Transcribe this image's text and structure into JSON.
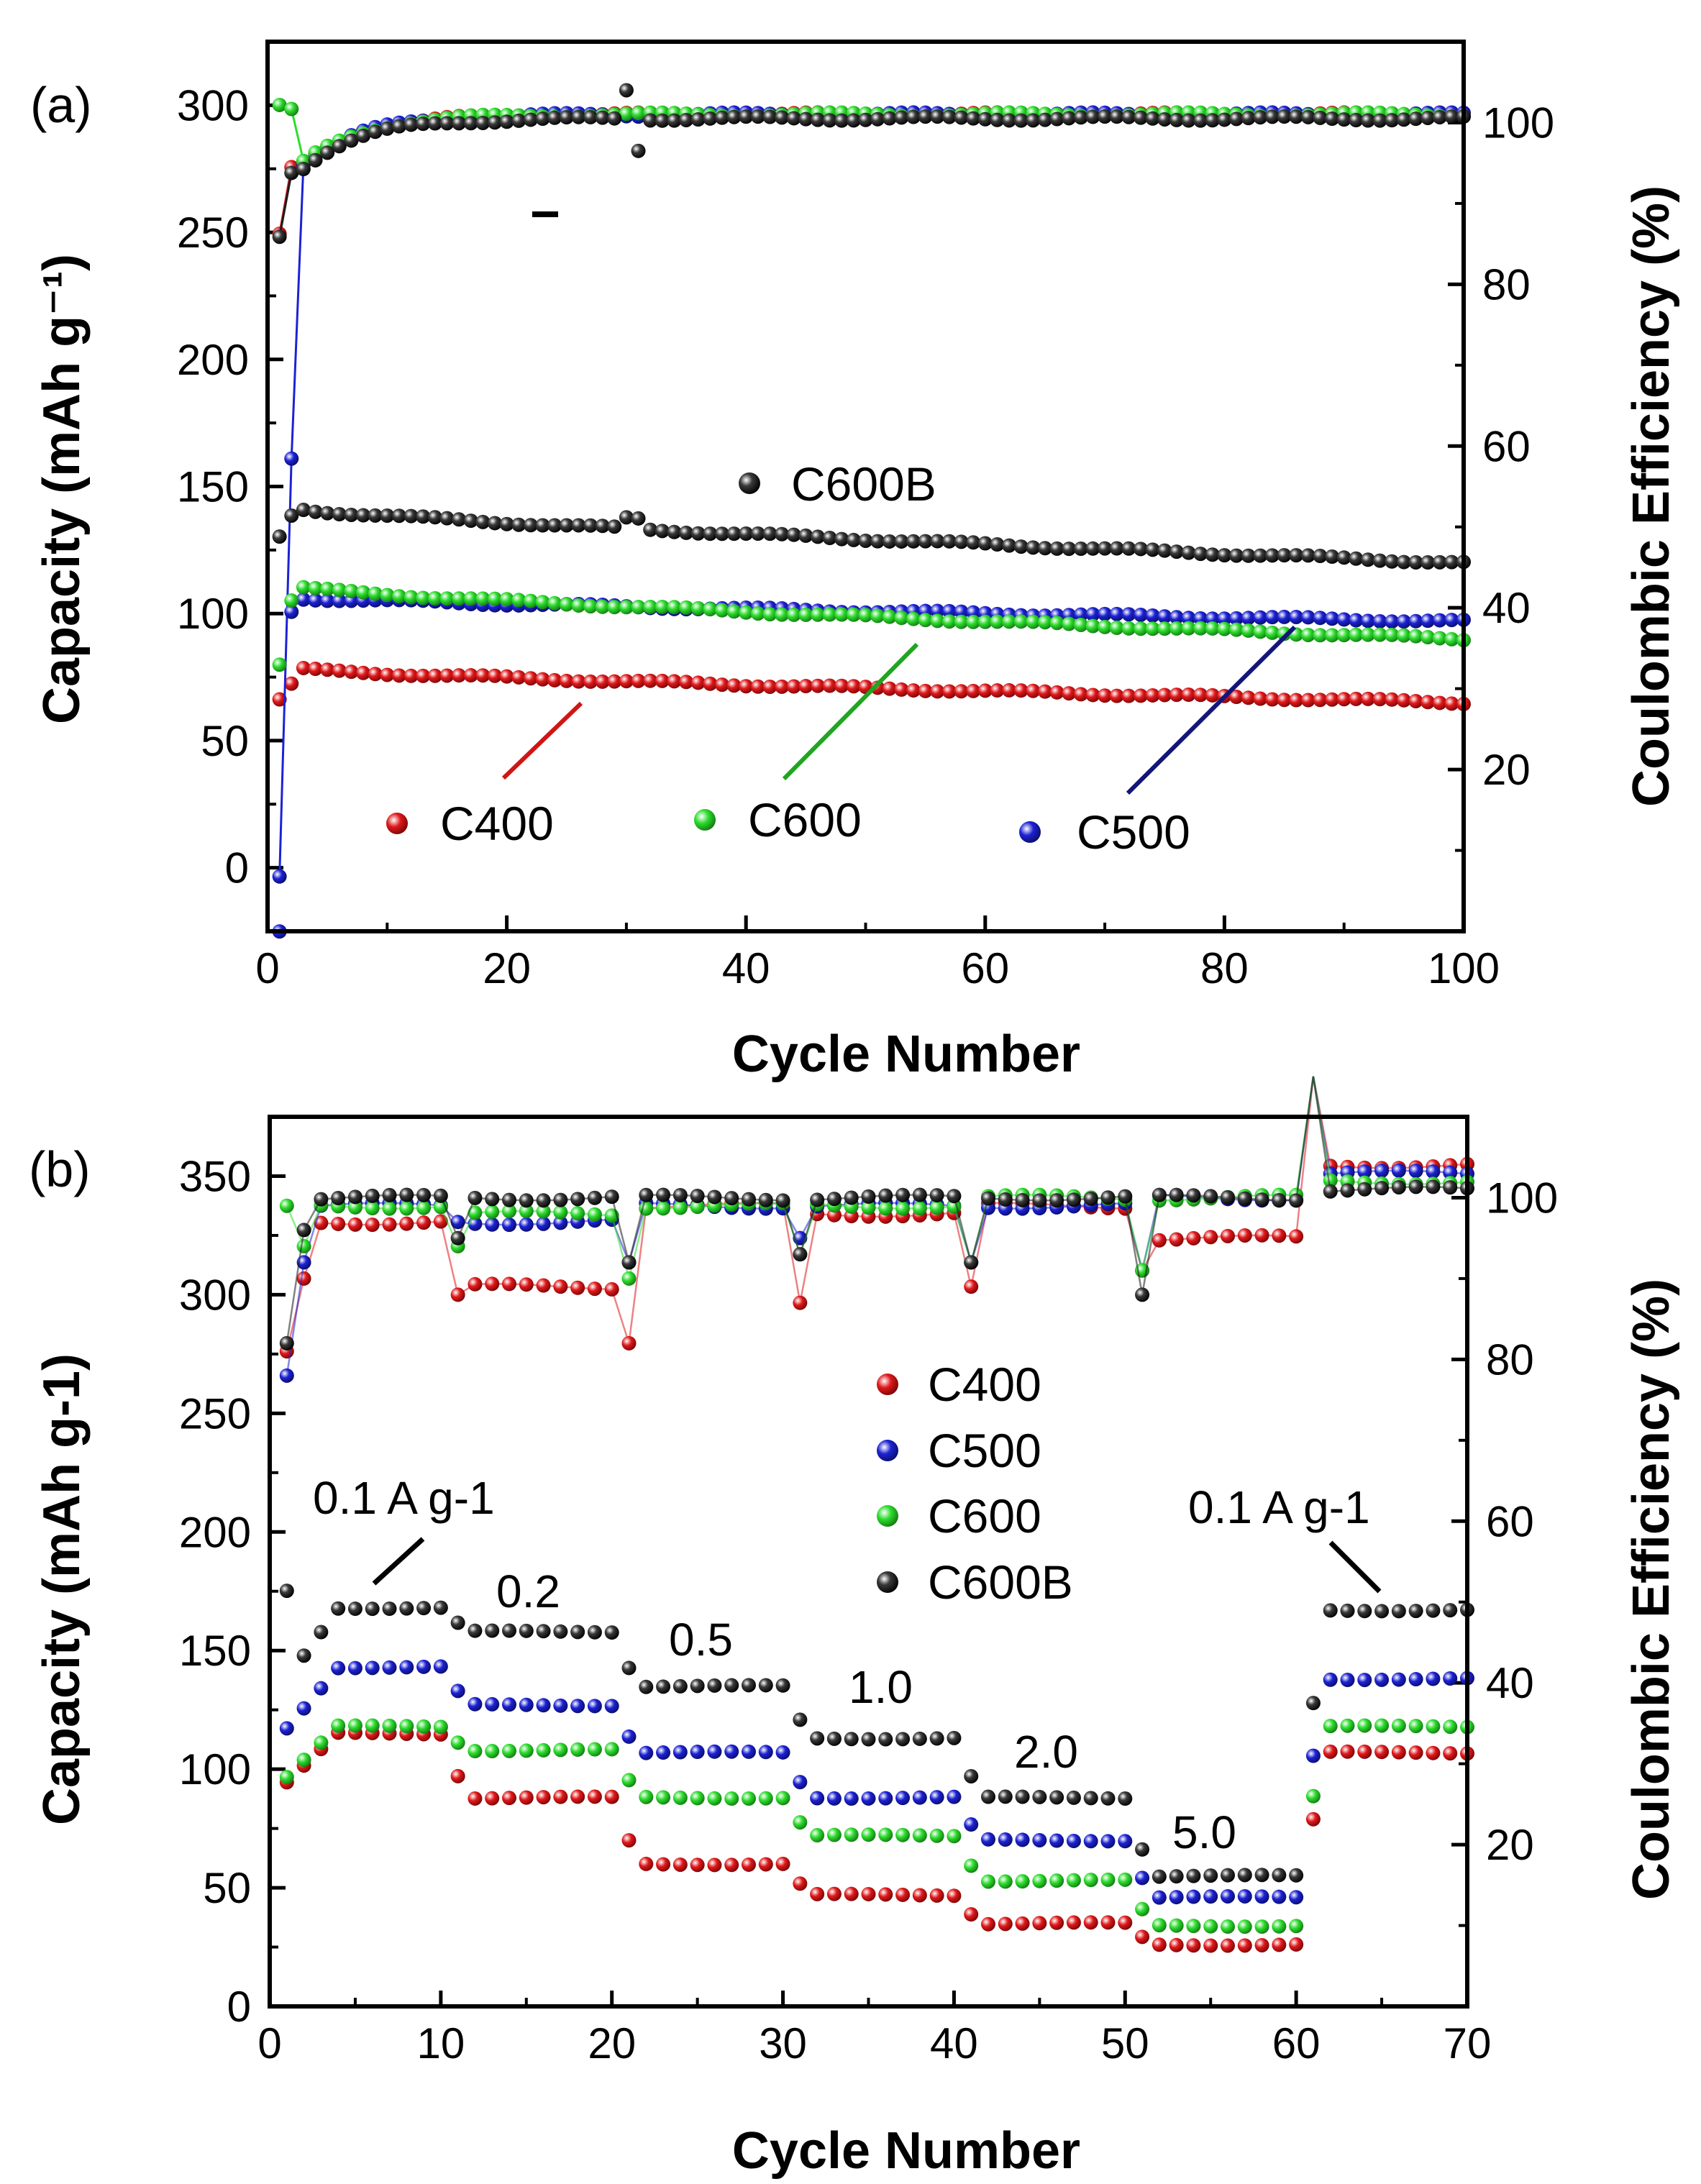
{
  "chart_data": [
    {
      "panel": "(a)",
      "type": "scatter",
      "xlabel": "Cycle Number",
      "ylabel": "Capacity (mAh g⁻¹)",
      "y2label": "Coulombic Efficiency (%)",
      "xlim": [
        0,
        100
      ],
      "ylim": [
        -25,
        325
      ],
      "y2lim": [
        0,
        110
      ],
      "xticks": [
        "0",
        "20",
        "40",
        "60",
        "80",
        "100"
      ],
      "yticks": [
        "0",
        "50",
        "100",
        "150",
        "200",
        "250",
        "300"
      ],
      "y2ticks": [
        "20",
        "40",
        "60",
        "80",
        "100"
      ],
      "legend": {
        "labels": [
          "C600B",
          "C400",
          "C600",
          "C500"
        ],
        "colors": [
          "#1a1a1a",
          "#e0191b",
          "#2ddc2d",
          "#1c22d4"
        ]
      },
      "series": [
        {
          "name": "C400",
          "color": "#e0191b",
          "capacity": {
            "start": 66,
            "peak": 78,
            "end": 65,
            "first": 66
          },
          "ce": {
            "first": 86,
            "end": 101
          }
        },
        {
          "name": "C500",
          "color": "#1c22d4",
          "capacity": {
            "start": 96,
            "peak": 106,
            "end": 97,
            "first": -25
          },
          "ce": {
            "first": 7,
            "end": 101
          }
        },
        {
          "name": "C600",
          "color": "#2ddc2d",
          "capacity": {
            "start": 100,
            "peak": 110,
            "end": 90,
            "first": 80
          },
          "ce": {
            "first": 102,
            "end": 101
          }
        },
        {
          "name": "C600B",
          "color": "#1a1a1a",
          "capacity": {
            "start": 136,
            "peak": 141,
            "end": 120,
            "first": 130
          },
          "ce": {
            "first": 86,
            "end": 100.5
          }
        }
      ]
    },
    {
      "panel": "(b)",
      "type": "scatter",
      "xlabel": "Cycle Number",
      "ylabel": "Capacity (mAh g-1)",
      "y2label": "Coulombic Efficiency (%)",
      "xlim": [
        0,
        70
      ],
      "ylim": [
        0,
        375
      ],
      "y2lim": [
        0,
        110
      ],
      "xticks": [
        "0",
        "10",
        "20",
        "30",
        "40",
        "50",
        "60",
        "70"
      ],
      "yticks": [
        "0",
        "50",
        "100",
        "150",
        "200",
        "250",
        "300",
        "350"
      ],
      "y2ticks": [
        "20",
        "40",
        "60",
        "80",
        "100"
      ],
      "legend": {
        "labels": [
          "C400",
          "C500",
          "C600",
          "C600B"
        ],
        "colors": [
          "#e0191b",
          "#1c22d4",
          "#2ddc2d",
          "#1a1a1a"
        ]
      },
      "rate_labels": [
        "0.1 A g-1",
        "0.2",
        "0.5",
        "1.0",
        "2.0",
        "5.0",
        "0.1 A g-1"
      ],
      "series": [
        {
          "name": "C400",
          "color": "#e0191b",
          "steps": [
            115,
            88,
            60,
            47,
            35,
            26,
            107
          ],
          "ce": [
            97,
            89,
            99,
            98,
            99,
            95,
            104
          ]
        },
        {
          "name": "C500",
          "color": "#1c22d4",
          "steps": [
            143,
            127,
            107,
            88,
            70,
            46,
            138
          ],
          "ce": [
            99,
            97,
            99,
            99,
            99,
            100,
            103
          ]
        },
        {
          "name": "C600",
          "color": "#2ddc2d",
          "steps": [
            118,
            108,
            88,
            72,
            53,
            34,
            118
          ],
          "ce": [
            99,
            98,
            99,
            99,
            100,
            100,
            102
          ]
        },
        {
          "name": "C600B",
          "color": "#1a1a1a",
          "steps": [
            168,
            158,
            135,
            113,
            88,
            55,
            167
          ],
          "ce": [
            100,
            100,
            100,
            100,
            100,
            100,
            101
          ]
        }
      ]
    }
  ]
}
